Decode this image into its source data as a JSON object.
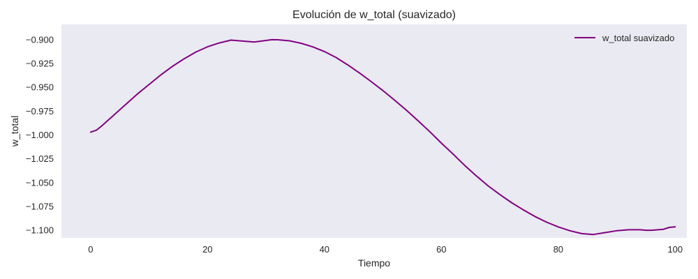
{
  "chart_data": {
    "type": "line",
    "title": "Evolución de w_total (suavizado)",
    "xlabel": "Tiempo",
    "ylabel": "w_total",
    "xlim": [
      -5,
      102
    ],
    "ylim": [
      -1.108,
      -0.884
    ],
    "x_ticks": [
      0,
      20,
      40,
      60,
      80,
      100
    ],
    "x_tick_labels": [
      "0",
      "20",
      "40",
      "60",
      "80",
      "100"
    ],
    "y_ticks": [
      -0.9,
      -0.925,
      -0.95,
      -0.975,
      -1.0,
      -1.025,
      -1.05,
      -1.075,
      -1.1
    ],
    "y_tick_labels": [
      "−0.900",
      "−0.925",
      "−0.950",
      "−0.975",
      "−1.000",
      "−1.025",
      "−1.050",
      "−1.075",
      "−1.100"
    ],
    "grid": false,
    "legend_position": "top-right",
    "plot_background": "#eaeaf2",
    "series": [
      {
        "name": "w_total suavizado",
        "color": "#800080",
        "x": [
          0,
          1,
          2,
          4,
          6,
          8,
          10,
          12,
          14,
          16,
          18,
          20,
          22,
          24,
          26,
          28,
          30,
          31,
          32,
          34,
          36,
          38,
          40,
          42,
          44,
          46,
          48,
          50,
          52,
          54,
          56,
          58,
          60,
          62,
          64,
          66,
          68,
          70,
          72,
          74,
          76,
          78,
          80,
          82,
          84,
          86,
          88,
          90,
          92,
          94,
          95,
          96,
          98,
          99,
          100
        ],
        "y": [
          -0.997,
          -0.995,
          -0.99,
          -0.979,
          -0.968,
          -0.957,
          -0.947,
          -0.937,
          -0.928,
          -0.92,
          -0.913,
          -0.9075,
          -0.9035,
          -0.9005,
          -0.9015,
          -0.9025,
          -0.9008,
          -0.9,
          -0.9001,
          -0.9012,
          -0.9038,
          -0.9076,
          -0.9125,
          -0.9188,
          -0.9265,
          -0.935,
          -0.944,
          -0.9535,
          -0.9635,
          -0.974,
          -0.985,
          -0.9965,
          -1.0085,
          -1.02,
          -1.032,
          -1.043,
          -1.0535,
          -1.0625,
          -1.071,
          -1.0785,
          -1.0855,
          -1.0915,
          -1.0965,
          -1.1005,
          -1.1035,
          -1.1045,
          -1.1025,
          -1.1005,
          -1.0995,
          -1.0995,
          -1.1,
          -1.1,
          -1.099,
          -1.097,
          -1.0965
        ]
      }
    ]
  }
}
